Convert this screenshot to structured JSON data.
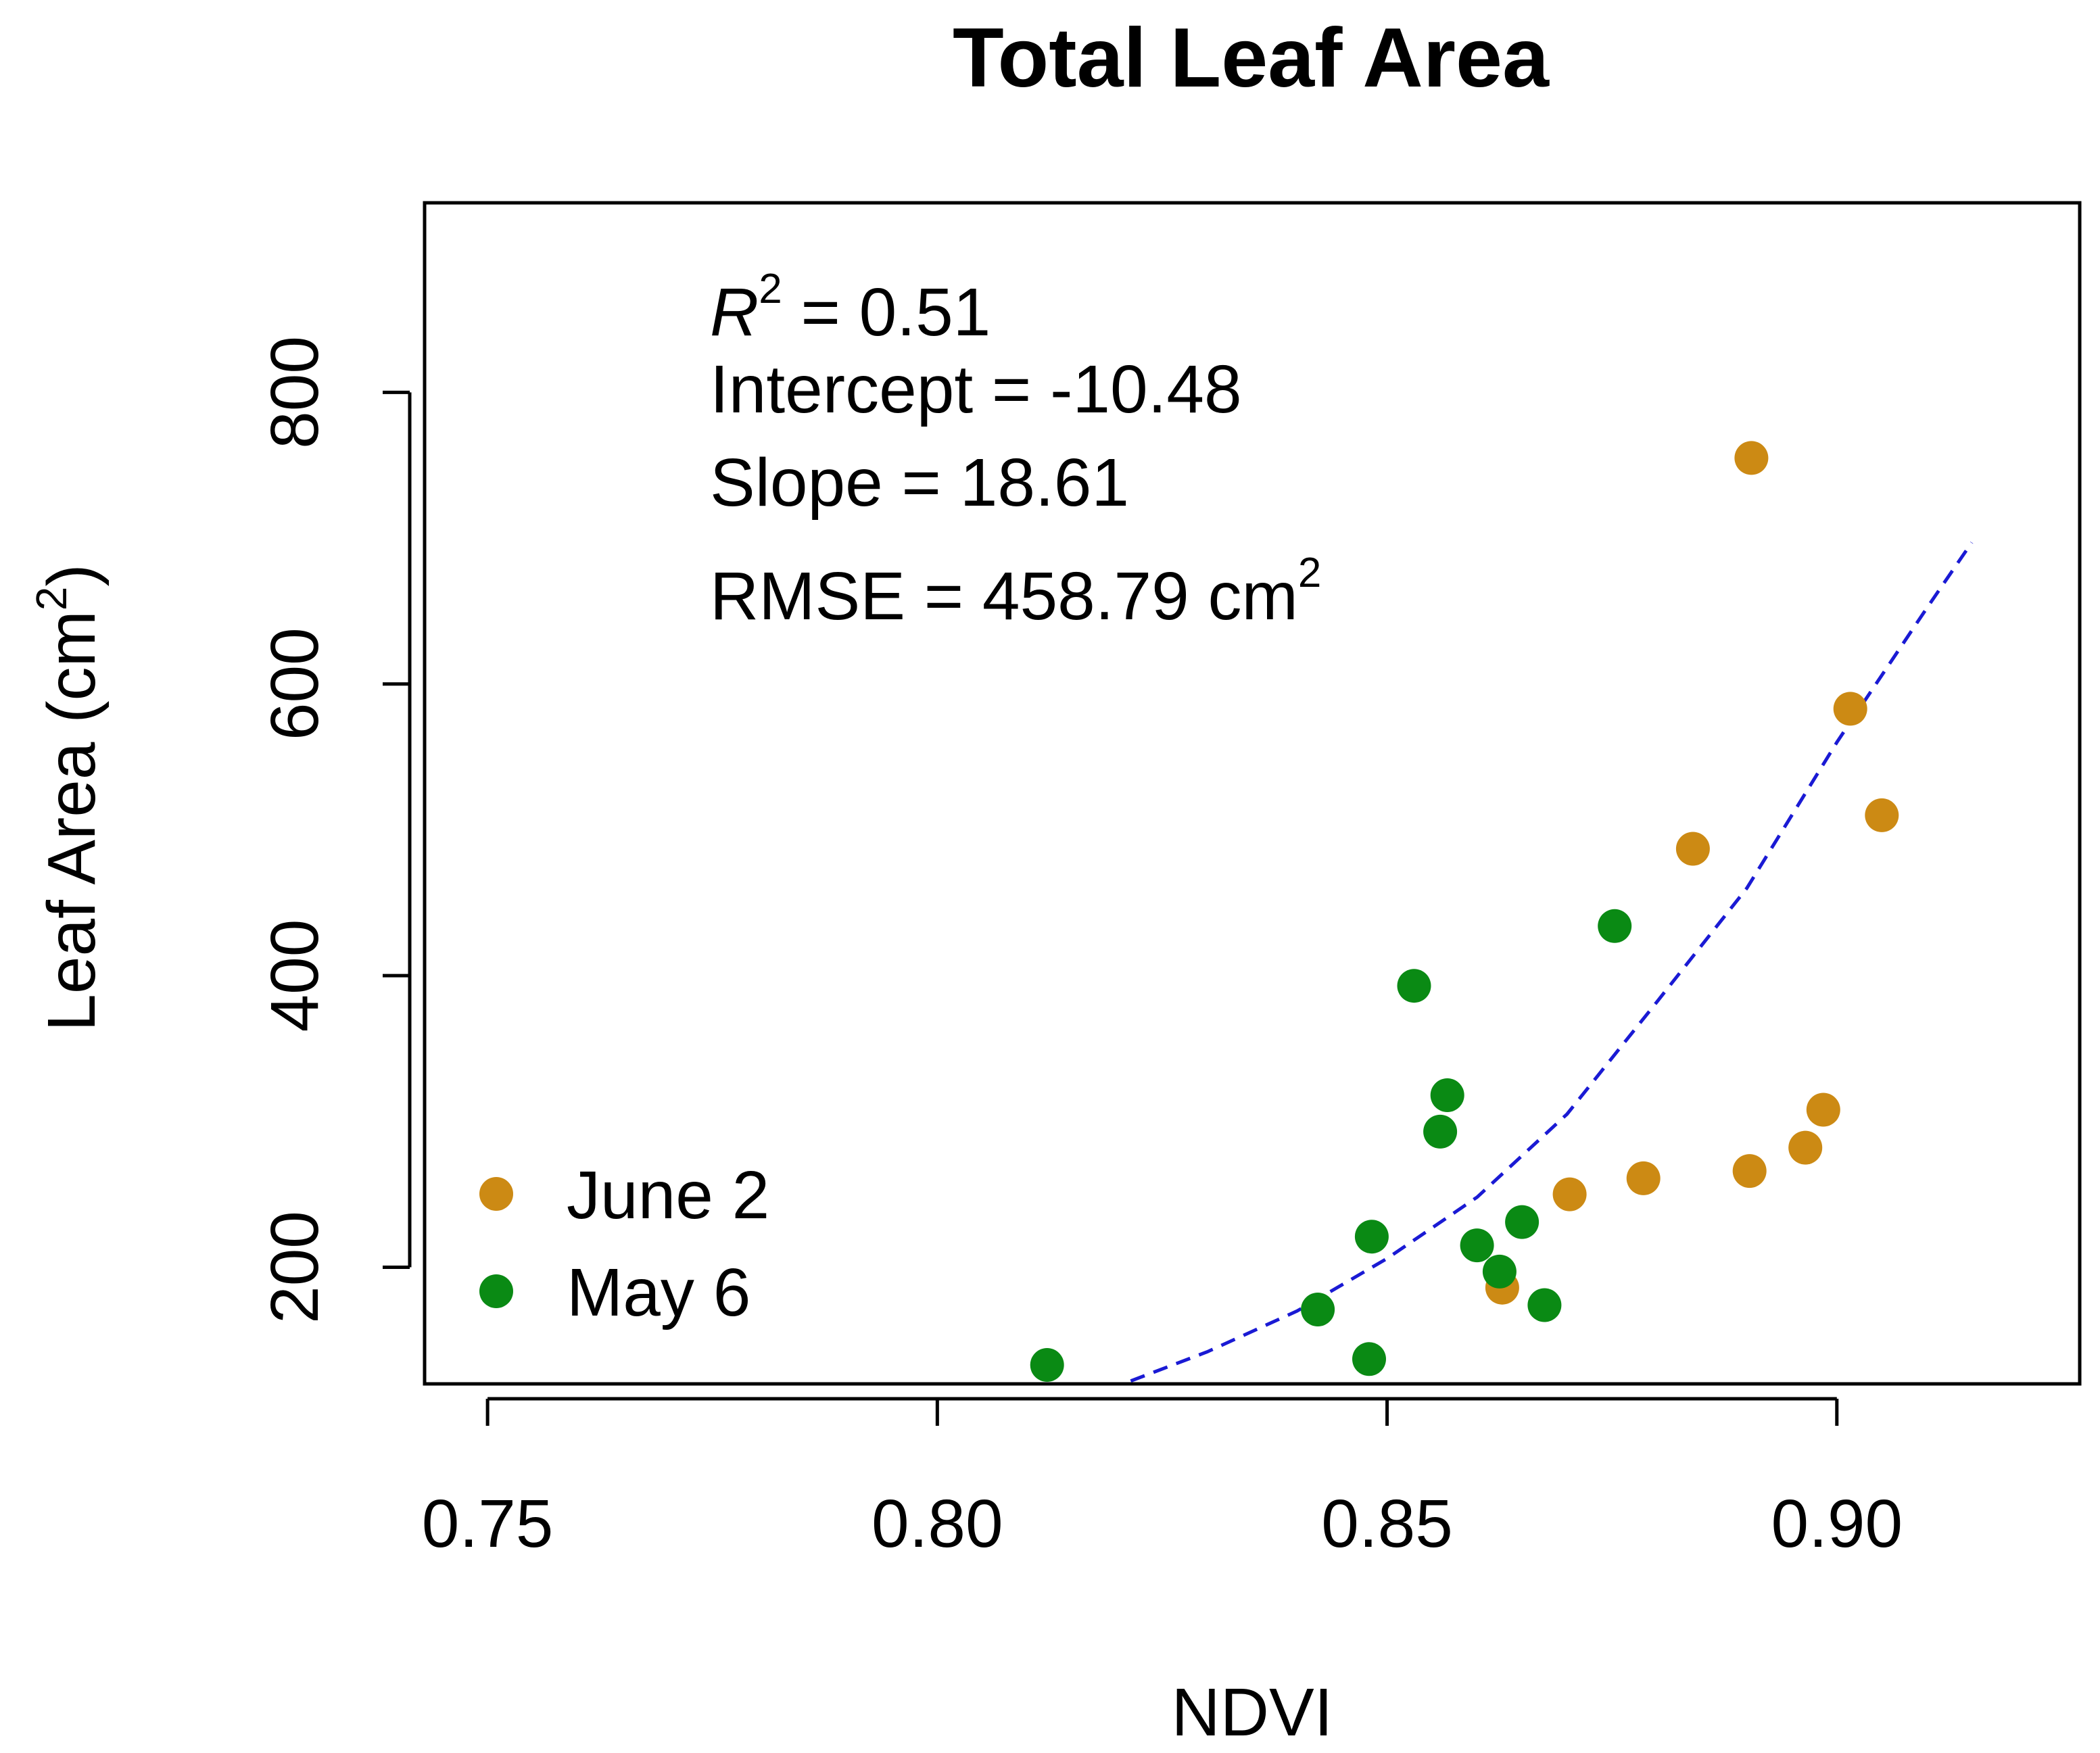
{
  "chart_data": {
    "type": "scatter",
    "title": "Total Leaf Area",
    "xlabel": "NDVI",
    "ylabel": {
      "main": "Leaf Area (cm",
      "sup": "2",
      "close": ")"
    },
    "xlim": [
      0.743,
      0.927
    ],
    "ylim": [
      120,
      930
    ],
    "xticks": [
      0.75,
      0.8,
      0.85,
      0.9
    ],
    "xtick_labels": [
      "0.75",
      "0.80",
      "0.85",
      "0.90"
    ],
    "yticks": [
      200,
      400,
      600,
      800
    ],
    "ytick_labels": [
      "200",
      "400",
      "600",
      "800"
    ],
    "grid": false,
    "legend": {
      "position": "bottom-left",
      "entries": [
        {
          "label": "June 2",
          "color": "#CC8A14"
        },
        {
          "label": "May 6",
          "color": "#0A8A14"
        }
      ]
    },
    "series": [
      {
        "name": "June 2",
        "color": "#CC8A14",
        "points": [
          {
            "x": 0.8905,
            "y": 755
          },
          {
            "x": 0.9015,
            "y": 583
          },
          {
            "x": 0.905,
            "y": 510
          },
          {
            "x": 0.884,
            "y": 487
          },
          {
            "x": 0.8985,
            "y": 308
          },
          {
            "x": 0.8965,
            "y": 282
          },
          {
            "x": 0.8903,
            "y": 266
          },
          {
            "x": 0.8785,
            "y": 261
          },
          {
            "x": 0.8703,
            "y": 250
          },
          {
            "x": 0.8628,
            "y": 186
          }
        ]
      },
      {
        "name": "May 6",
        "color": "#0A8A14",
        "points": [
          {
            "x": 0.8753,
            "y": 434
          },
          {
            "x": 0.853,
            "y": 393
          },
          {
            "x": 0.8567,
            "y": 318
          },
          {
            "x": 0.8559,
            "y": 293
          },
          {
            "x": 0.865,
            "y": 231
          },
          {
            "x": 0.8483,
            "y": 221
          },
          {
            "x": 0.86,
            "y": 215
          },
          {
            "x": 0.8625,
            "y": 197
          },
          {
            "x": 0.8675,
            "y": 174
          },
          {
            "x": 0.8423,
            "y": 171
          },
          {
            "x": 0.848,
            "y": 137
          },
          {
            "x": 0.8122,
            "y": 133
          }
        ]
      }
    ],
    "fit_line": {
      "style": "dashed",
      "color": "#1A1AD4",
      "points": [
        {
          "x": 0.8215,
          "y": 122
        },
        {
          "x": 0.83,
          "y": 142
        },
        {
          "x": 0.84,
          "y": 170
        },
        {
          "x": 0.85,
          "y": 206
        },
        {
          "x": 0.86,
          "y": 248
        },
        {
          "x": 0.87,
          "y": 305
        },
        {
          "x": 0.88,
          "y": 382
        },
        {
          "x": 0.89,
          "y": 460
        },
        {
          "x": 0.9,
          "y": 560
        },
        {
          "x": 0.91,
          "y": 652
        },
        {
          "x": 0.915,
          "y": 697
        }
      ]
    },
    "annotations": {
      "r2": {
        "symbol": "R",
        "sup": "2",
        "rest": " = 0.51"
      },
      "intercept": "Intercept = -10.48",
      "slope": "Slope = 18.61",
      "rmse": {
        "text": "RMSE = 458.79 cm",
        "sup": "2"
      }
    }
  }
}
